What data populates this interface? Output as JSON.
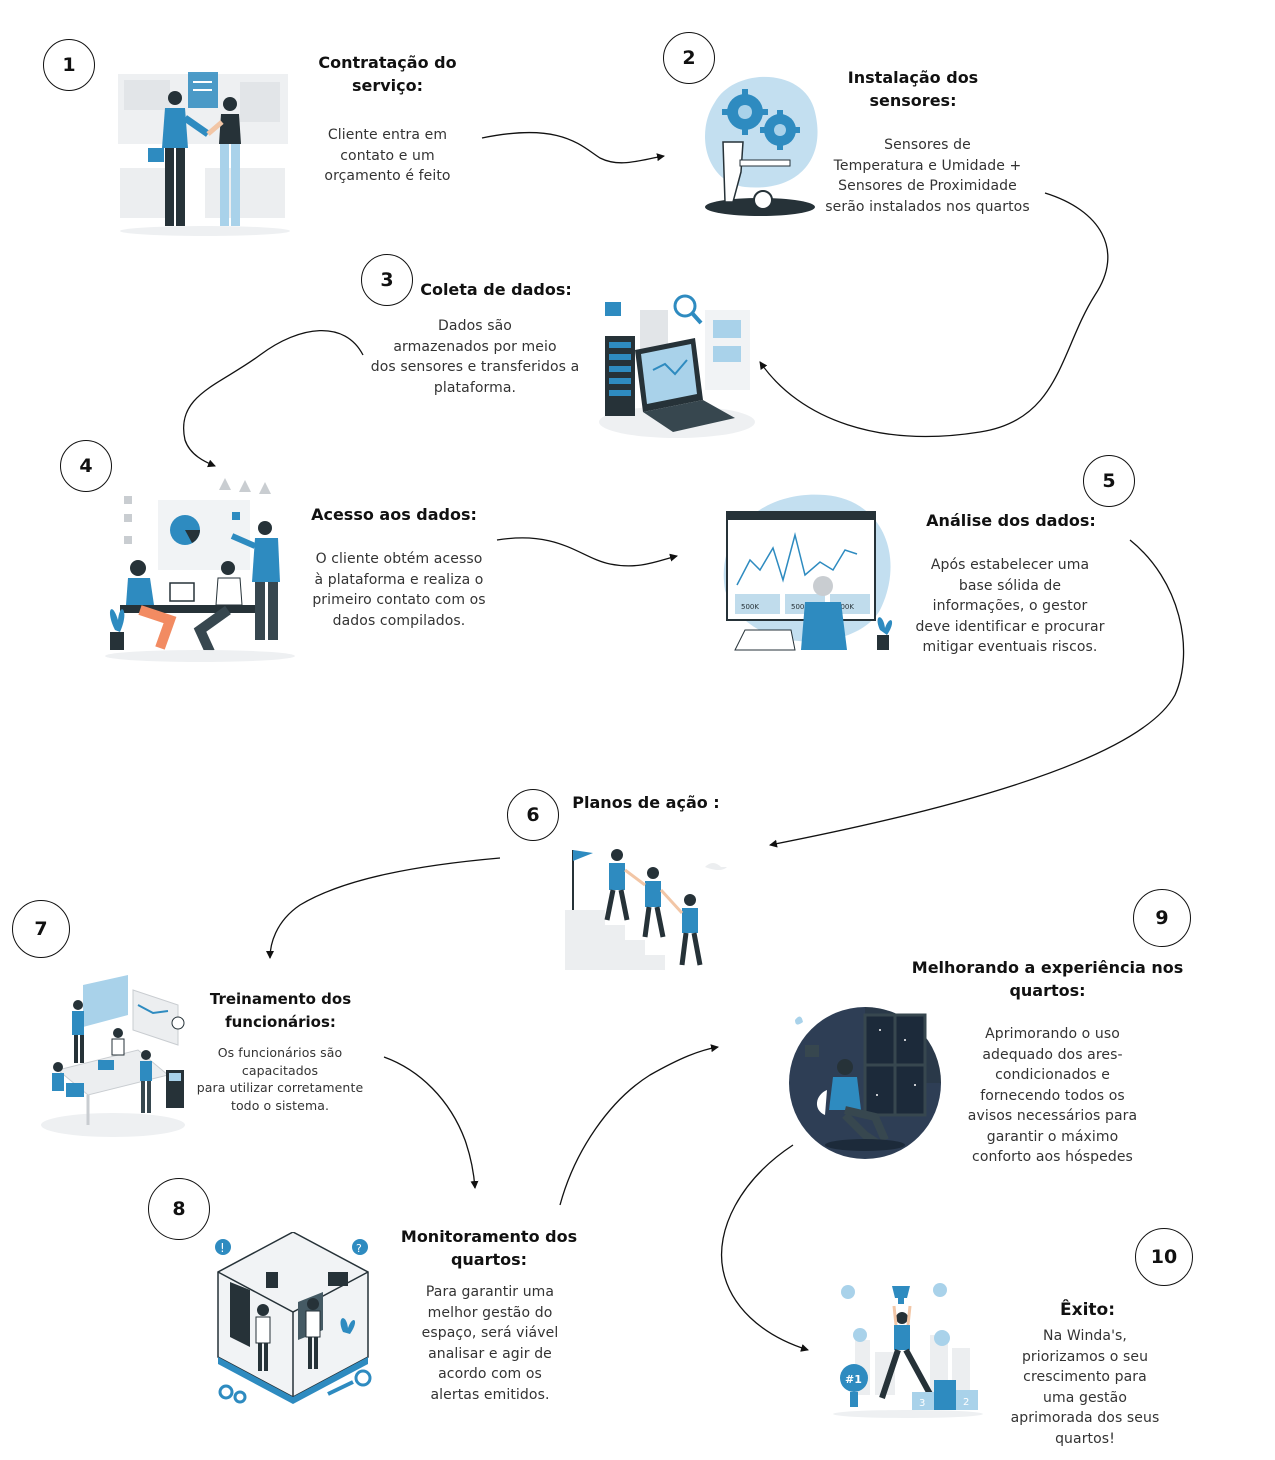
{
  "steps": [
    {
      "number": "1",
      "title": "Contratação do serviço:",
      "description": [
        "Cliente entra em",
        "contato e um",
        "orçamento é feito"
      ]
    },
    {
      "number": "2",
      "title": "Instalação dos sensores:",
      "description": [
        "Sensores de",
        "Temperatura e Umidade  +",
        "Sensores de Proximidade",
        "serão instalados nos quartos"
      ]
    },
    {
      "number": "3",
      "title": "Coleta de dados:",
      "description": [
        "Dados são",
        "armazenados por meio",
        "dos sensores e transferidos a",
        "plataforma."
      ]
    },
    {
      "number": "4",
      "title": "Acesso aos dados:",
      "description": [
        "O cliente obtém acesso",
        "à plataforma e realiza o",
        "primeiro contato com os",
        "dados compilados."
      ]
    },
    {
      "number": "5",
      "title": "Análise dos dados:",
      "description": [
        "Após estabelecer uma",
        "base sólida de",
        "informações, o gestor",
        "deve identificar e procurar",
        "mitigar eventuais riscos."
      ]
    },
    {
      "number": "6",
      "title": "Planos de ação :",
      "description": []
    },
    {
      "number": "7",
      "title": "Treinamento dos funcionários:",
      "description": [
        "Os funcionários são",
        "capacitados",
        "para utilizar corretamente",
        "todo o sistema."
      ]
    },
    {
      "number": "8",
      "title": "Monitoramento dos quartos:",
      "description": [
        "Para garantir uma",
        "melhor gestão do",
        "espaço, será viável",
        "analisar e agir de",
        "acordo com os",
        "alertas emitidos."
      ]
    },
    {
      "number": "9",
      "title": "Melhorando a experiência nos quartos:",
      "description": [
        "Aprimorando o uso",
        "adequado dos ares-",
        "condicionados e",
        "fornecendo todos os",
        "avisos necessários para",
        "garantir o máximo",
        "conforto aos hóspedes"
      ]
    },
    {
      "number": "10",
      "title": "Êxito:",
      "description": [
        "Na Winda's,",
        "priorizamos o seu",
        "crescimento para",
        "uma gestão",
        "aprimorada dos seus",
        "quartos!"
      ]
    }
  ],
  "illustration_labels": {
    "analysis_stats": [
      "500K",
      "500K",
      "500K"
    ],
    "podium": [
      "3",
      "2"
    ],
    "badge": "#1"
  },
  "colors": {
    "accent": "#2e8bc0",
    "accent_light": "#a9d2ea",
    "dark": "#263238",
    "gray": "#e6e8eb"
  }
}
